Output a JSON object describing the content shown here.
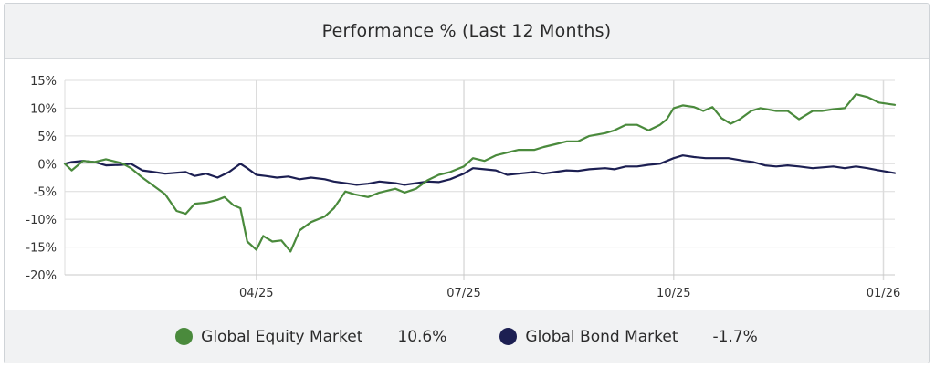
{
  "title": "Performance % (Last 12 Months)",
  "colors": {
    "equity": "#4a8a3c",
    "bond": "#1c1f52",
    "grid": "#dcdcdc",
    "axis": "#c8c8c8"
  },
  "legend": [
    {
      "name": "Global Equity Market",
      "value": "10.6%",
      "color": "#4a8a3c"
    },
    {
      "name": "Global Bond Market",
      "value": "-1.7%",
      "color": "#1c1f52"
    }
  ],
  "chart_data": {
    "type": "line",
    "title": "Performance % (Last 12 Months)",
    "xlabel": "",
    "ylabel": "",
    "xlim": [
      "2025-01-07",
      "2026-01-06"
    ],
    "ylim": [
      -20,
      15
    ],
    "y_ticks": [
      15,
      10,
      5,
      0,
      -5,
      -10,
      -15,
      -20
    ],
    "y_tick_labels": [
      "15%",
      "10%",
      "5%",
      "0%",
      "-5%",
      "-10%",
      "-15%",
      "-20%"
    ],
    "x_ticks": [
      "2025-04-01",
      "2025-07-01",
      "2025-10-01",
      "2026-01-01"
    ],
    "x_tick_labels": [
      "04/25",
      "07/25",
      "10/25",
      "01/26"
    ],
    "grid": true,
    "legend_position": "bottom",
    "series": [
      {
        "name": "Global Equity Market",
        "color": "#4a8a3c",
        "points": [
          [
            "2025-01-07",
            0
          ],
          [
            "2025-01-10",
            -1.2
          ],
          [
            "2025-01-15",
            0.5
          ],
          [
            "2025-01-20",
            0.3
          ],
          [
            "2025-01-25",
            0.8
          ],
          [
            "2025-02-01",
            0.1
          ],
          [
            "2025-02-05",
            -0.8
          ],
          [
            "2025-02-10",
            -2.5
          ],
          [
            "2025-02-15",
            -4
          ],
          [
            "2025-02-20",
            -5.5
          ],
          [
            "2025-02-25",
            -8.5
          ],
          [
            "2025-03-01",
            -9
          ],
          [
            "2025-03-05",
            -7.2
          ],
          [
            "2025-03-10",
            -7
          ],
          [
            "2025-03-15",
            -6.5
          ],
          [
            "2025-03-18",
            -6
          ],
          [
            "2025-03-22",
            -7.5
          ],
          [
            "2025-03-25",
            -8
          ],
          [
            "2025-03-28",
            -14
          ],
          [
            "2025-04-01",
            -15.5
          ],
          [
            "2025-04-04",
            -13
          ],
          [
            "2025-04-08",
            -14
          ],
          [
            "2025-04-12",
            -13.8
          ],
          [
            "2025-04-16",
            -15.8
          ],
          [
            "2025-04-20",
            -12
          ],
          [
            "2025-04-25",
            -10.5
          ],
          [
            "2025-05-01",
            -9.5
          ],
          [
            "2025-05-05",
            -8
          ],
          [
            "2025-05-10",
            -5
          ],
          [
            "2025-05-14",
            -5.5
          ],
          [
            "2025-05-20",
            -6
          ],
          [
            "2025-05-25",
            -5.2
          ],
          [
            "2025-06-01",
            -4.5
          ],
          [
            "2025-06-05",
            -5.2
          ],
          [
            "2025-06-10",
            -4.5
          ],
          [
            "2025-06-15",
            -3
          ],
          [
            "2025-06-20",
            -2
          ],
          [
            "2025-06-25",
            -1.5
          ],
          [
            "2025-07-01",
            -0.5
          ],
          [
            "2025-07-05",
            1
          ],
          [
            "2025-07-10",
            0.5
          ],
          [
            "2025-07-15",
            1.5
          ],
          [
            "2025-07-20",
            2
          ],
          [
            "2025-07-25",
            2.5
          ],
          [
            "2025-08-01",
            2.5
          ],
          [
            "2025-08-05",
            3
          ],
          [
            "2025-08-10",
            3.5
          ],
          [
            "2025-08-15",
            4
          ],
          [
            "2025-08-20",
            4
          ],
          [
            "2025-08-25",
            5
          ],
          [
            "2025-09-01",
            5.5
          ],
          [
            "2025-09-05",
            6
          ],
          [
            "2025-09-10",
            7
          ],
          [
            "2025-09-15",
            7
          ],
          [
            "2025-09-20",
            6
          ],
          [
            "2025-09-25",
            7
          ],
          [
            "2025-09-28",
            8
          ],
          [
            "2025-10-01",
            10
          ],
          [
            "2025-10-05",
            10.5
          ],
          [
            "2025-10-10",
            10.2
          ],
          [
            "2025-10-14",
            9.5
          ],
          [
            "2025-10-18",
            10.2
          ],
          [
            "2025-10-22",
            8.2
          ],
          [
            "2025-10-26",
            7.2
          ],
          [
            "2025-10-30",
            8
          ],
          [
            "2025-11-04",
            9.5
          ],
          [
            "2025-11-08",
            10
          ],
          [
            "2025-11-15",
            9.5
          ],
          [
            "2025-11-20",
            9.5
          ],
          [
            "2025-11-25",
            8
          ],
          [
            "2025-12-01",
            9.5
          ],
          [
            "2025-12-05",
            9.5
          ],
          [
            "2025-12-10",
            9.8
          ],
          [
            "2025-12-15",
            10
          ],
          [
            "2025-12-20",
            12.5
          ],
          [
            "2025-12-25",
            12
          ],
          [
            "2025-12-30",
            11
          ],
          [
            "2026-01-06",
            10.6
          ]
        ]
      },
      {
        "name": "Global Bond Market",
        "color": "#1c1f52",
        "points": [
          [
            "2025-01-07",
            0
          ],
          [
            "2025-01-10",
            0.3
          ],
          [
            "2025-01-15",
            0.5
          ],
          [
            "2025-01-20",
            0.3
          ],
          [
            "2025-01-25",
            -0.3
          ],
          [
            "2025-02-01",
            -0.2
          ],
          [
            "2025-02-05",
            0
          ],
          [
            "2025-02-10",
            -1.2
          ],
          [
            "2025-02-15",
            -1.5
          ],
          [
            "2025-02-20",
            -1.8
          ],
          [
            "2025-03-01",
            -1.5
          ],
          [
            "2025-03-05",
            -2.2
          ],
          [
            "2025-03-10",
            -1.8
          ],
          [
            "2025-03-15",
            -2.5
          ],
          [
            "2025-03-20",
            -1.5
          ],
          [
            "2025-03-25",
            0
          ],
          [
            "2025-03-28",
            -0.8
          ],
          [
            "2025-04-01",
            -2
          ],
          [
            "2025-04-05",
            -2.2
          ],
          [
            "2025-04-10",
            -2.5
          ],
          [
            "2025-04-15",
            -2.3
          ],
          [
            "2025-04-20",
            -2.8
          ],
          [
            "2025-04-25",
            -2.5
          ],
          [
            "2025-05-01",
            -2.8
          ],
          [
            "2025-05-05",
            -3.2
          ],
          [
            "2025-05-10",
            -3.5
          ],
          [
            "2025-05-15",
            -3.8
          ],
          [
            "2025-05-20",
            -3.6
          ],
          [
            "2025-05-25",
            -3.2
          ],
          [
            "2025-06-01",
            -3.5
          ],
          [
            "2025-06-05",
            -3.8
          ],
          [
            "2025-06-10",
            -3.5
          ],
          [
            "2025-06-15",
            -3.2
          ],
          [
            "2025-06-20",
            -3.3
          ],
          [
            "2025-06-25",
            -2.8
          ],
          [
            "2025-07-01",
            -1.8
          ],
          [
            "2025-07-05",
            -0.8
          ],
          [
            "2025-07-10",
            -1
          ],
          [
            "2025-07-15",
            -1.2
          ],
          [
            "2025-07-20",
            -2
          ],
          [
            "2025-07-25",
            -1.8
          ],
          [
            "2025-08-01",
            -1.5
          ],
          [
            "2025-08-05",
            -1.8
          ],
          [
            "2025-08-10",
            -1.5
          ],
          [
            "2025-08-15",
            -1.2
          ],
          [
            "2025-08-20",
            -1.3
          ],
          [
            "2025-08-25",
            -1
          ],
          [
            "2025-09-01",
            -0.8
          ],
          [
            "2025-09-05",
            -1
          ],
          [
            "2025-09-10",
            -0.5
          ],
          [
            "2025-09-15",
            -0.5
          ],
          [
            "2025-09-20",
            -0.2
          ],
          [
            "2025-09-25",
            0
          ],
          [
            "2025-10-01",
            1
          ],
          [
            "2025-10-05",
            1.5
          ],
          [
            "2025-10-10",
            1.2
          ],
          [
            "2025-10-15",
            1
          ],
          [
            "2025-10-20",
            1
          ],
          [
            "2025-10-25",
            1
          ],
          [
            "2025-11-01",
            0.5
          ],
          [
            "2025-11-05",
            0.3
          ],
          [
            "2025-11-10",
            -0.3
          ],
          [
            "2025-11-15",
            -0.5
          ],
          [
            "2025-11-20",
            -0.3
          ],
          [
            "2025-11-25",
            -0.5
          ],
          [
            "2025-12-01",
            -0.8
          ],
          [
            "2025-12-10",
            -0.5
          ],
          [
            "2025-12-15",
            -0.8
          ],
          [
            "2025-12-20",
            -0.5
          ],
          [
            "2025-12-25",
            -0.8
          ],
          [
            "2025-12-30",
            -1.2
          ],
          [
            "2026-01-06",
            -1.7
          ]
        ]
      }
    ]
  }
}
